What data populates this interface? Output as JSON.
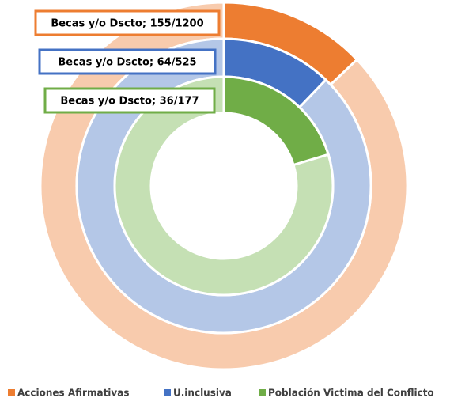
{
  "chart_data": {
    "type": "nested-donut",
    "series": [
      {
        "name": "Acciones Afirmativas",
        "color": "#ed7d31",
        "rest_color": "#f8cbad",
        "values": [
          155,
          1200
        ],
        "label": "Becas y/o Dscto; 155/1200"
      },
      {
        "name": "U.inclusiva",
        "color": "#4472c4",
        "rest_color": "#b4c7e7",
        "values": [
          64,
          525
        ],
        "label": "Becas y/o Dscto; 64/525"
      },
      {
        "name": "Población Victima del Conflicto",
        "color": "#70ad47",
        "rest_color": "#c5e0b4",
        "values": [
          36,
          177
        ],
        "label": "Becas y/o Dscto; 36/177"
      }
    ]
  }
}
